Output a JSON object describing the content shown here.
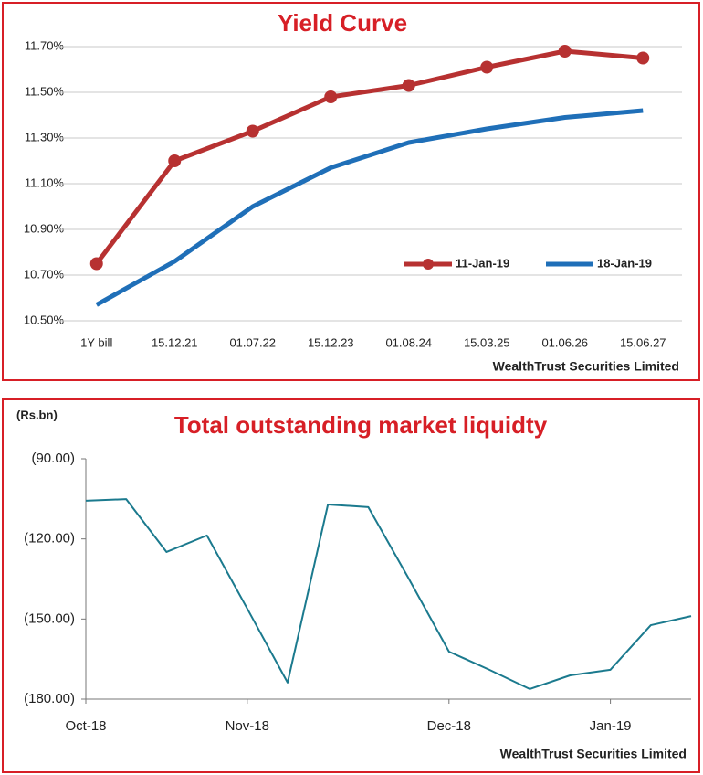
{
  "chart_data": [
    {
      "type": "line",
      "title": "Yield Curve",
      "footer": "WealthTrust Securities Limited",
      "categories": [
        "1Y bill",
        "15.12.21",
        "01.07.22",
        "15.12.23",
        "01.08.24",
        "15.03.25",
        "01.06.26",
        "15.06.27"
      ],
      "series": [
        {
          "name": "11-Jan-19",
          "color": "#b73131",
          "marker": "circle",
          "values": [
            10.75,
            11.2,
            11.33,
            11.48,
            11.53,
            11.61,
            11.68,
            11.65
          ]
        },
        {
          "name": "18-Jan-19",
          "color": "#1f6fb8",
          "values": [
            10.57,
            10.76,
            11.0,
            11.17,
            11.28,
            11.34,
            11.39,
            11.42
          ]
        }
      ],
      "ylim": [
        10.5,
        11.8
      ],
      "yticks": [
        {
          "value": 10.5,
          "label": "10.50%"
        },
        {
          "value": 10.7,
          "label": "10.70%"
        },
        {
          "value": 10.9,
          "label": "10.90%"
        },
        {
          "value": 11.1,
          "label": "11.10%"
        },
        {
          "value": 11.3,
          "label": "11.30%"
        },
        {
          "value": 11.5,
          "label": "11.50%"
        },
        {
          "value": 11.7,
          "label": "11.70%"
        }
      ],
      "grid": true,
      "legend": "center-right"
    },
    {
      "type": "line",
      "title": "Total outstanding market liquidty",
      "unit": "(Rs.bn)",
      "footer": "WealthTrust Securities Limited",
      "categories": [
        "Oct-18",
        null,
        null,
        null,
        "Nov-18",
        null,
        null,
        null,
        null,
        "Dec-18",
        null,
        null,
        null,
        "Jan-19",
        null,
        null
      ],
      "series": [
        {
          "name": null,
          "color": "#1b7a8e",
          "values": [
            -105.7,
            -105.1,
            -124.9,
            -118.7,
            -146.1,
            -173.8,
            -107.1,
            -108.1,
            -134.8,
            -162.2,
            -169.0,
            -176.2,
            -171.1,
            -169.0,
            -152.3,
            -148.9
          ]
        }
      ],
      "ylim": [
        -180,
        -90
      ],
      "yticks": [
        {
          "value": -180,
          "label": "(180.00)"
        },
        {
          "value": -150,
          "label": "(150.00)"
        },
        {
          "value": -120,
          "label": "(120.00)"
        },
        {
          "value": -90,
          "label": "(90.00)"
        }
      ],
      "grid": false
    }
  ]
}
